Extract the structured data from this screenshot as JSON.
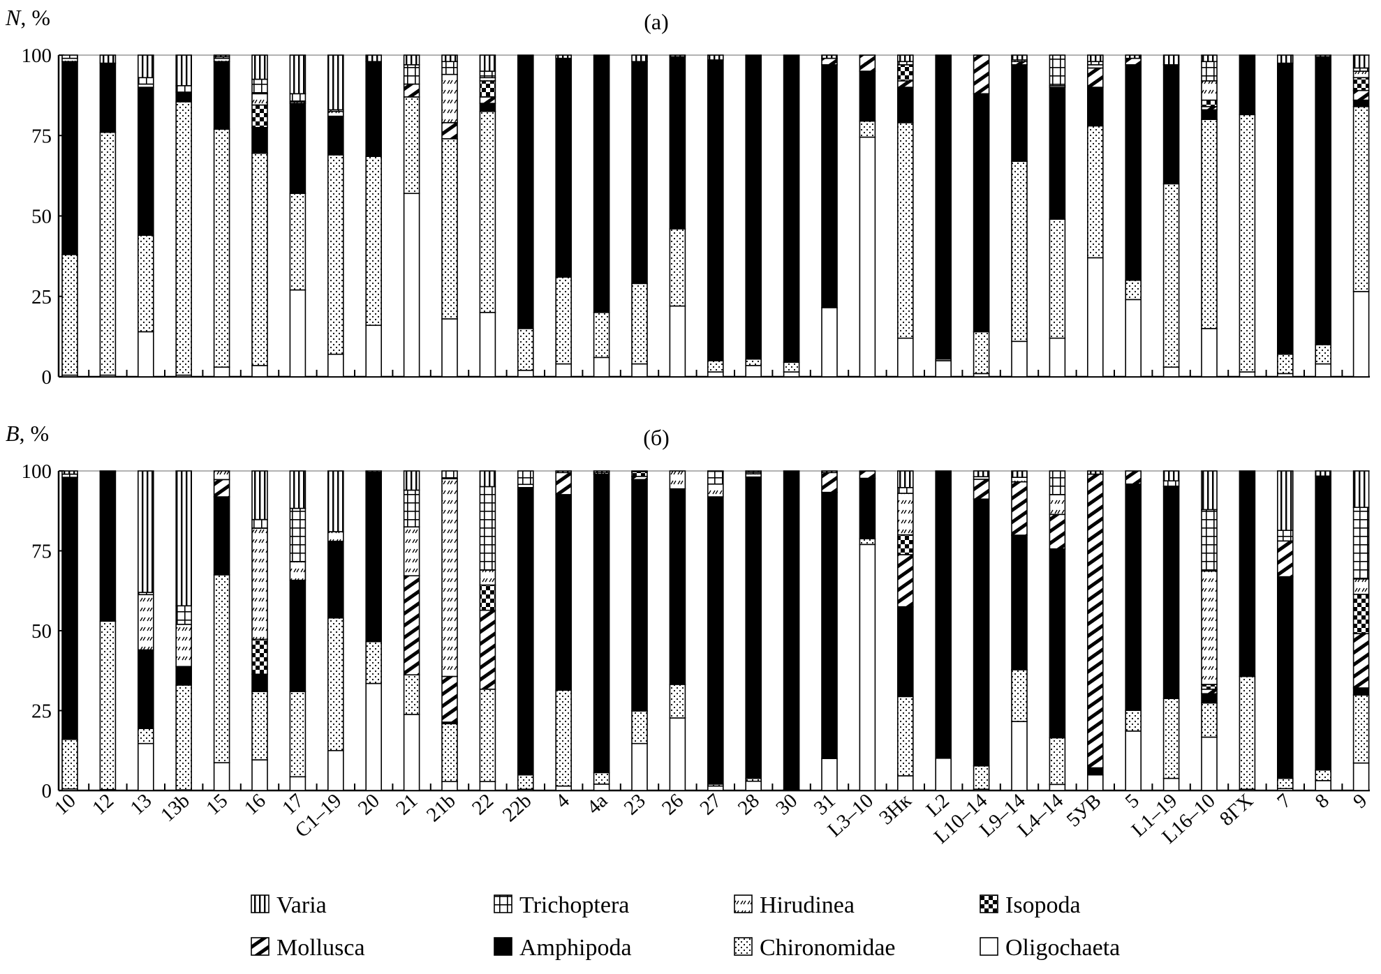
{
  "chart_data": {
    "type": "bar",
    "stacked": true,
    "categories": [
      "10",
      "12",
      "13",
      "13b",
      "15",
      "16",
      "17",
      "C1–19",
      "20",
      "21",
      "21b",
      "22",
      "22b",
      "4",
      "4a",
      "23",
      "26",
      "27",
      "28",
      "30",
      "31",
      "L3–10",
      "3Нк",
      "L2",
      "L10–14",
      "L9–14",
      "L4–14",
      "5УВ",
      "5",
      "L1–19",
      "L16–10",
      "8ГХ",
      "7",
      "8",
      "9"
    ],
    "series_order": [
      "Oligochaeta",
      "Chironomidae",
      "Amphipoda",
      "Mollusca",
      "Isopoda",
      "Hirudinea",
      "Trichoptera",
      "Varia"
    ],
    "yticks": [
      "0",
      "25",
      "50",
      "75",
      "100"
    ],
    "ylim": [
      0,
      100
    ],
    "legend": {
      "placement": "bottom",
      "items": [
        {
          "name": "Varia",
          "pattern": "vertical-stripes"
        },
        {
          "name": "Trichoptera",
          "pattern": "grid"
        },
        {
          "name": "Hirudinea",
          "pattern": "diagonal-dashes"
        },
        {
          "name": "Isopoda",
          "pattern": "checkerboard"
        },
        {
          "name": "Mollusca",
          "pattern": "thick-diagonal-stripes"
        },
        {
          "name": "Amphipoda",
          "pattern": "solid-black"
        },
        {
          "name": "Chironomidae",
          "pattern": "dots"
        },
        {
          "name": "Oligochaeta",
          "pattern": "white"
        }
      ]
    },
    "panels": [
      {
        "title": "(a)",
        "ylabel_var": "N",
        "ylabel_unit": ", %",
        "stacks": [
          [
            0.5,
            37.5,
            60,
            0,
            0,
            1,
            1,
            0
          ],
          [
            0.5,
            75.5,
            21.5,
            0,
            0,
            0,
            0,
            2.5
          ],
          [
            14,
            30,
            46,
            0,
            0,
            1,
            2,
            7
          ],
          [
            0.5,
            85,
            3,
            0,
            0,
            0,
            2,
            9.5
          ],
          [
            3,
            74,
            21,
            0,
            0,
            1,
            0.5,
            0.5
          ],
          [
            3.5,
            66,
            8,
            0,
            7,
            3.5,
            4.5,
            7.5
          ],
          [
            27,
            30,
            28,
            0,
            0,
            0.5,
            2.5,
            12
          ],
          [
            7,
            62,
            12,
            0,
            0,
            1.5,
            0.5,
            17
          ],
          [
            16,
            52.5,
            29.5,
            0,
            0,
            0,
            0,
            2
          ],
          [
            57,
            30,
            0,
            4,
            0,
            0,
            6,
            3
          ],
          [
            18,
            56,
            0,
            5,
            0,
            15,
            4,
            2
          ],
          [
            20,
            62.5,
            2.5,
            2,
            5,
            1,
            2,
            5
          ],
          [
            2,
            13,
            85,
            0,
            0,
            0,
            0,
            0
          ],
          [
            4,
            27,
            68,
            0,
            0,
            0,
            0,
            1
          ],
          [
            6,
            14,
            80,
            0,
            0,
            0,
            0,
            0
          ],
          [
            4,
            25,
            69,
            0,
            0,
            0,
            0,
            2
          ],
          [
            22,
            24,
            53.5,
            0,
            0,
            0,
            0,
            0.5
          ],
          [
            1.5,
            3.5,
            93.5,
            0,
            0,
            0,
            0,
            1.5
          ],
          [
            3.5,
            2,
            94.5,
            0,
            0,
            0,
            0,
            0
          ],
          [
            1.5,
            3,
            95.5,
            0,
            0,
            0,
            0,
            0
          ],
          [
            21.5,
            0,
            75.5,
            2,
            0,
            0,
            0,
            1
          ],
          [
            74.5,
            5,
            15.5,
            5,
            0,
            0,
            0,
            0
          ],
          [
            12,
            67,
            11,
            2,
            5,
            0,
            1,
            2
          ],
          [
            5,
            0.5,
            94.5,
            0,
            0,
            0,
            0,
            0
          ],
          [
            1,
            13,
            74,
            12,
            0,
            0,
            0,
            0
          ],
          [
            11,
            56,
            30,
            1,
            0,
            0.5,
            0,
            1.5
          ],
          [
            12,
            37,
            41,
            0,
            0,
            0.5,
            9.5,
            0
          ],
          [
            37,
            41,
            12,
            6,
            0,
            1,
            1,
            2
          ],
          [
            24,
            6,
            67,
            2,
            0,
            0,
            0,
            1
          ],
          [
            3,
            57,
            37,
            0,
            0,
            0,
            0,
            3
          ],
          [
            15,
            65,
            3,
            1,
            2,
            6,
            6,
            2
          ],
          [
            1.5,
            80,
            18.5,
            0,
            0,
            0,
            0,
            0
          ],
          [
            1,
            6,
            90.5,
            0,
            0,
            0,
            0,
            2.5
          ],
          [
            4,
            6,
            89.5,
            0,
            0,
            0,
            0,
            0.5
          ],
          [
            26.5,
            57.5,
            2,
            3,
            4,
            2,
            1,
            4
          ]
        ]
      },
      {
        "title": "(б)",
        "ylabel_var": "B",
        "ylabel_unit": ", %",
        "stacks": [
          [
            0.5,
            15.5,
            82,
            0,
            0,
            0,
            1,
            1
          ],
          [
            0.3,
            52.7,
            46.7,
            0,
            0,
            0,
            0,
            0.3
          ],
          [
            14.7,
            4.7,
            24.6,
            0,
            0,
            17.3,
            0.7,
            38
          ],
          [
            0.2,
            32.8,
            5.8,
            0,
            0,
            13.2,
            5.8,
            42.2
          ],
          [
            8.7,
            58.8,
            24.4,
            5.4,
            0,
            2.7,
            0,
            0
          ],
          [
            9.6,
            21.4,
            5.4,
            0,
            10.9,
            34.8,
            2.7,
            15.2
          ],
          [
            4.3,
            26.7,
            34.8,
            0,
            0,
            5.8,
            16.7,
            11.7
          ],
          [
            12.5,
            41.5,
            24,
            0,
            0,
            3,
            0,
            19
          ],
          [
            33.5,
            13.1,
            53,
            0,
            0,
            0,
            0,
            0.4
          ],
          [
            23.8,
            12.4,
            0,
            31,
            0,
            15.3,
            11.5,
            6
          ],
          [
            2.8,
            18.1,
            0.5,
            14.3,
            0,
            61.9,
            2.4,
            0
          ],
          [
            2.8,
            28.9,
            0,
            24.7,
            7.9,
            4.7,
            26.1,
            4.9
          ],
          [
            0.4,
            4.5,
            89.9,
            0,
            0,
            1,
            4.2,
            0
          ],
          [
            1.4,
            30,
            61.2,
            6.9,
            0,
            0,
            0,
            0.5
          ],
          [
            2,
            3.6,
            93.4,
            0,
            0,
            0.5,
            0,
            0.5
          ],
          [
            14.7,
            10.2,
            72.4,
            1,
            1.5,
            0,
            0,
            0.2
          ],
          [
            22.7,
            10.5,
            61.2,
            0,
            0,
            5.6,
            0,
            0
          ],
          [
            1.4,
            0.6,
            89.9,
            0,
            0,
            4,
            4,
            0.1
          ],
          [
            2.9,
            0.9,
            94.3,
            0,
            0,
            1,
            0.5,
            0.4
          ],
          [
            0,
            0.3,
            99.7,
            0,
            0,
            0,
            0,
            0
          ],
          [
            10,
            0,
            83.3,
            6.2,
            0,
            0,
            0,
            0.5
          ],
          [
            77,
            1.8,
            18.9,
            2.3,
            0,
            0,
            0,
            0
          ],
          [
            4.6,
            24.8,
            28.1,
            16.3,
            6.2,
            13,
            1.8,
            5.2
          ],
          [
            10.1,
            0,
            89.9,
            0,
            0,
            0,
            0,
            0
          ],
          [
            0.4,
            7.3,
            83.5,
            6.2,
            0,
            0.8,
            0,
            1.8
          ],
          [
            21.6,
            16.2,
            42.1,
            16.7,
            0,
            1.4,
            0,
            2
          ],
          [
            1.9,
            14.6,
            59.1,
            10.8,
            0,
            6.2,
            7.4,
            0
          ],
          [
            4.9,
            0,
            2.2,
            91.9,
            0,
            0,
            0,
            1
          ],
          [
            18.6,
            6.5,
            70.8,
            4.1,
            0,
            0,
            0,
            0
          ],
          [
            3.8,
            25,
            66.3,
            0,
            0,
            0,
            1.8,
            3.1
          ],
          [
            16.7,
            10.7,
            2.9,
            1.4,
            1.5,
            35.5,
            19.2,
            12.1
          ],
          [
            0.4,
            35.3,
            64.3,
            0,
            0,
            0,
            0,
            0
          ],
          [
            0.6,
            3.2,
            63.1,
            11.2,
            0,
            0,
            3.3,
            18.6
          ],
          [
            3.1,
            3.3,
            92,
            0,
            0,
            0,
            0,
            1.6
          ],
          [
            8.6,
            21.3,
            2.2,
            17,
            12.3,
            4.8,
            22.4,
            11.4
          ]
        ]
      }
    ]
  }
}
